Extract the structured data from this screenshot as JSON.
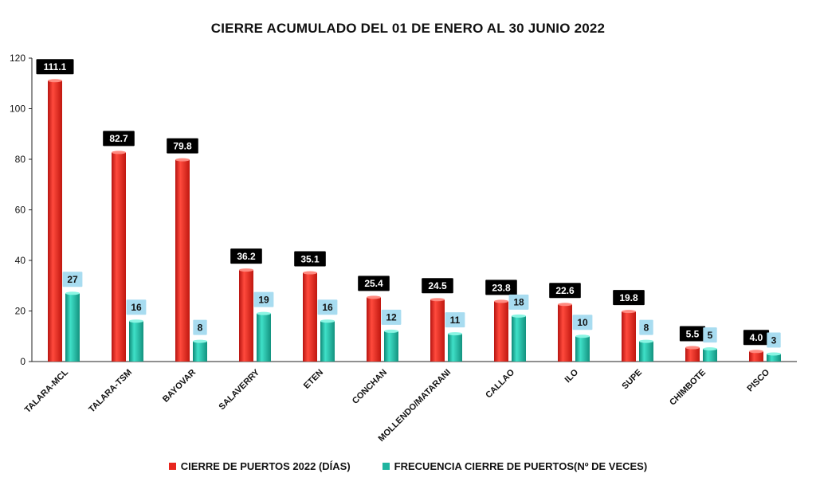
{
  "chart_data": {
    "type": "bar",
    "title": "CIERRE ACUMULADO DEL 01 DE ENERO AL 30 JUNIO 2022",
    "categories": [
      "TALARA-MCL",
      "TALARA-TSM",
      "BAYOVAR",
      "SALAVERRY",
      "ETEN",
      "CONCHAN",
      "MOLLENDO/MATARANI",
      "CALLAO",
      "ILO",
      "SUPE",
      "CHIMBOTE",
      "PISCO"
    ],
    "series": [
      {
        "name": "CIERRE DE PUERTOS 2022 (DÍAS)",
        "values": [
          111.1,
          82.7,
          79.8,
          36.2,
          35.1,
          25.4,
          24.5,
          23.8,
          22.6,
          19.8,
          5.5,
          4.0
        ],
        "labels": [
          "111.1",
          "82.7",
          "79.8",
          "36.2",
          "35.1",
          "25.4",
          "24.5",
          "23.8",
          "22.6",
          "19.8",
          "5.5",
          "4.0"
        ],
        "color": "#e8261f"
      },
      {
        "name": "FRECUENCIA CIERRE DE PUERTOS(Nº DE VECES)",
        "values": [
          27,
          16,
          8,
          19,
          16,
          12,
          11,
          18,
          10,
          8,
          5,
          3
        ],
        "labels": [
          "27",
          "16",
          "8",
          "19",
          "16",
          "12",
          "11",
          "18",
          "10",
          "8",
          "5",
          "3"
        ],
        "color": "#1fb5a0"
      }
    ],
    "ylim": [
      0,
      120
    ],
    "yticks": [
      "0",
      "20",
      "40",
      "60",
      "80",
      "100",
      "120"
    ],
    "grid": false,
    "legend_position": "bottom"
  }
}
